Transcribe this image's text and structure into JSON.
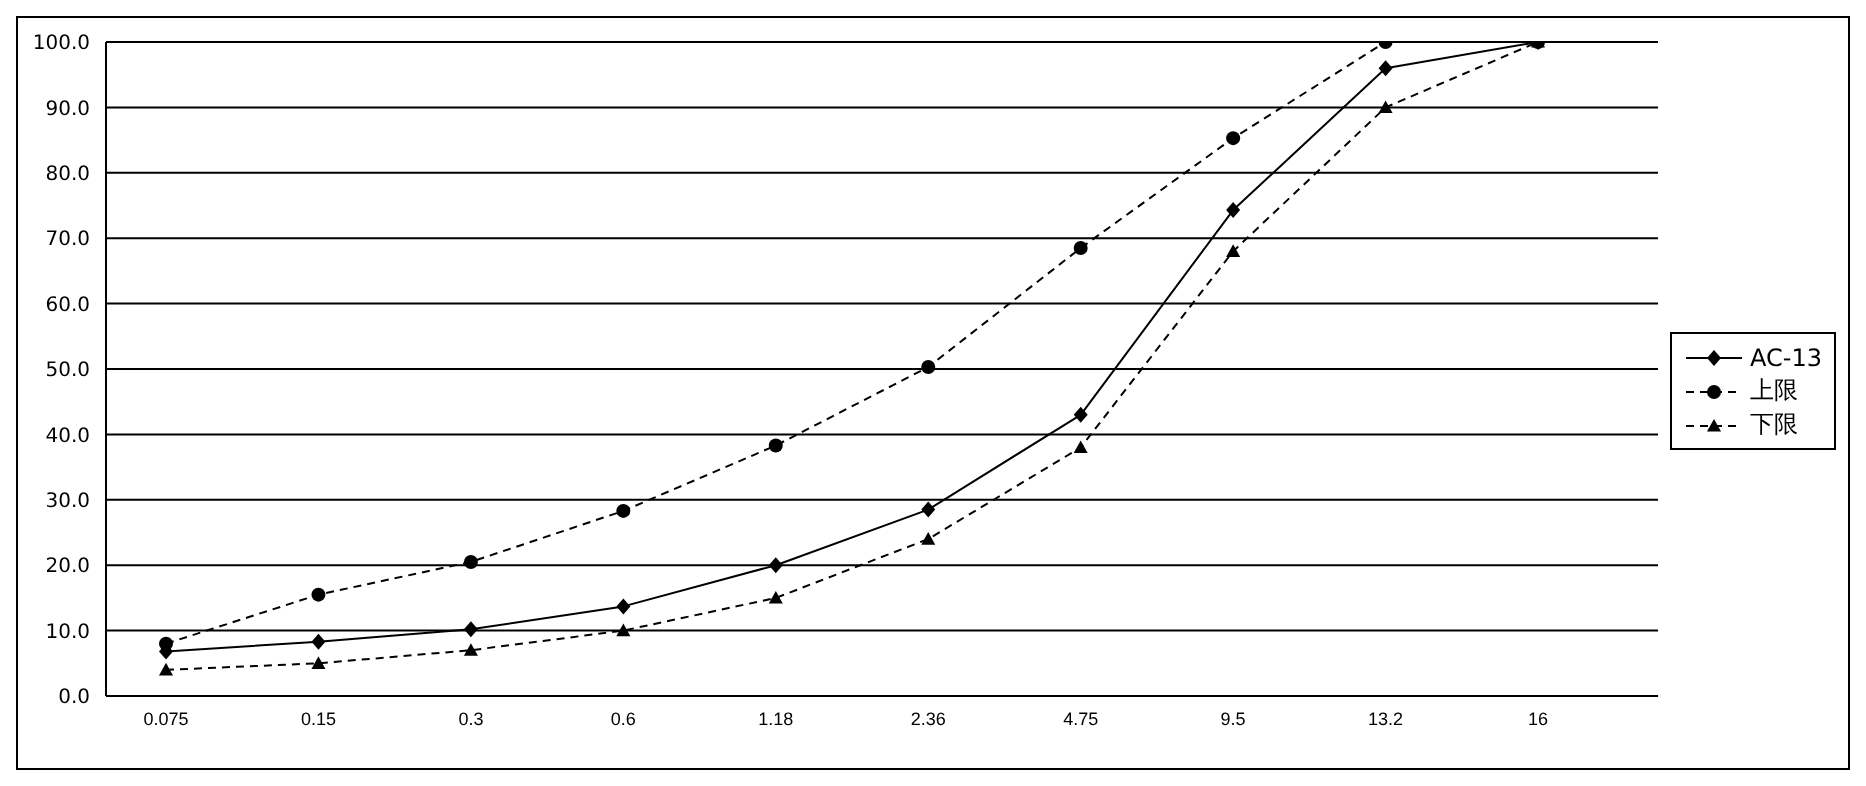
{
  "chart_data": {
    "type": "line",
    "categories": [
      "0.075",
      "0.15",
      "0.3",
      "0.6",
      "1.18",
      "2.36",
      "4.75",
      "9.5",
      "13.2",
      "16"
    ],
    "ylim": [
      0,
      100
    ],
    "yticks": [
      {
        "value": 0,
        "label": "0.0"
      },
      {
        "value": 10,
        "label": "10.0"
      },
      {
        "value": 20,
        "label": "20.0"
      },
      {
        "value": 30,
        "label": "30.0"
      },
      {
        "value": 40,
        "label": "40.0"
      },
      {
        "value": 50,
        "label": "50.0"
      },
      {
        "value": 60,
        "label": "60.0"
      },
      {
        "value": 70,
        "label": "70.0"
      },
      {
        "value": 80,
        "label": "80.0"
      },
      {
        "value": 90,
        "label": "90.0"
      },
      {
        "value": 100,
        "label": "100.0"
      }
    ],
    "grid": "y",
    "legend": "right",
    "series": [
      {
        "name": "AC-13",
        "color": "#000000",
        "marker": "diamond",
        "line_style": "solid",
        "values": [
          6.8,
          8.3,
          10.2,
          13.7,
          20,
          28.5,
          43,
          74.3,
          96,
          100
        ]
      },
      {
        "name": "上限",
        "color": "#000000",
        "marker": "circle",
        "line_style": "dashed",
        "values": [
          8,
          15.5,
          20.5,
          28.3,
          38.3,
          50.3,
          68.5,
          85.3,
          100,
          100
        ]
      },
      {
        "name": "下限",
        "color": "#000000",
        "marker": "triangle",
        "line_style": "dashed",
        "values": [
          4,
          5,
          7,
          10,
          15,
          24,
          38,
          68,
          90,
          100
        ]
      }
    ]
  }
}
